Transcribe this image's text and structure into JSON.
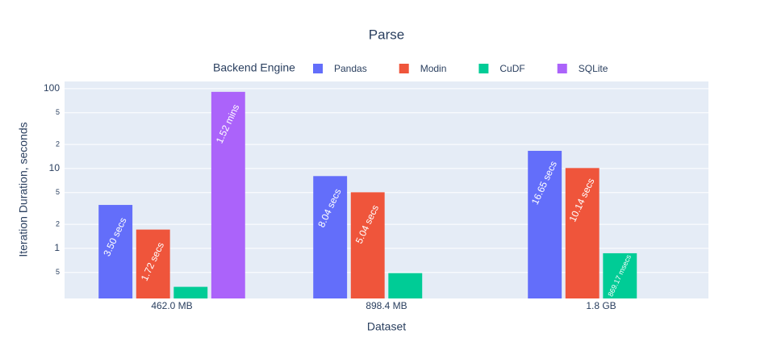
{
  "chart_data": {
    "type": "bar",
    "title": "Parse",
    "x_label": "Dataset",
    "y_label": "Iteration Duration, seconds",
    "legend_title": "Backend Engine",
    "categories": [
      "462.0 MB",
      "898.4 MB",
      "1.8 GB"
    ],
    "series": [
      {
        "name": "Pandas",
        "color": "#636efa",
        "values": [
          3.5,
          8.04,
          16.65
        ],
        "value_labels": [
          "3.50 secs",
          "8.04 secs",
          "16.65 secs"
        ]
      },
      {
        "name": "Modin",
        "color": "#ef553b",
        "values": [
          1.72,
          5.04,
          10.14
        ],
        "value_labels": [
          "1.72 secs",
          "5.04 secs",
          "10.14 secs"
        ]
      },
      {
        "name": "CuDF",
        "color": "#00cc96",
        "values": [
          0.33,
          0.49,
          0.86917
        ],
        "value_labels": [
          null,
          null,
          "869.17 msecs"
        ]
      },
      {
        "name": "SQLite",
        "color": "#ab63fa",
        "values": [
          91.2,
          null,
          null
        ],
        "value_labels": [
          "1.52 mins",
          null,
          null
        ]
      }
    ],
    "log_y": true,
    "ylim": [
      0.236,
      123
    ],
    "yticks": [
      {
        "value": 0.5,
        "label": "5"
      },
      1,
      {
        "value": 2,
        "label": "2"
      },
      {
        "value": 5,
        "label": "5"
      },
      10,
      {
        "value": 20,
        "label": "2"
      },
      {
        "value": 50,
        "label": "5"
      },
      100
    ],
    "grid": true
  }
}
